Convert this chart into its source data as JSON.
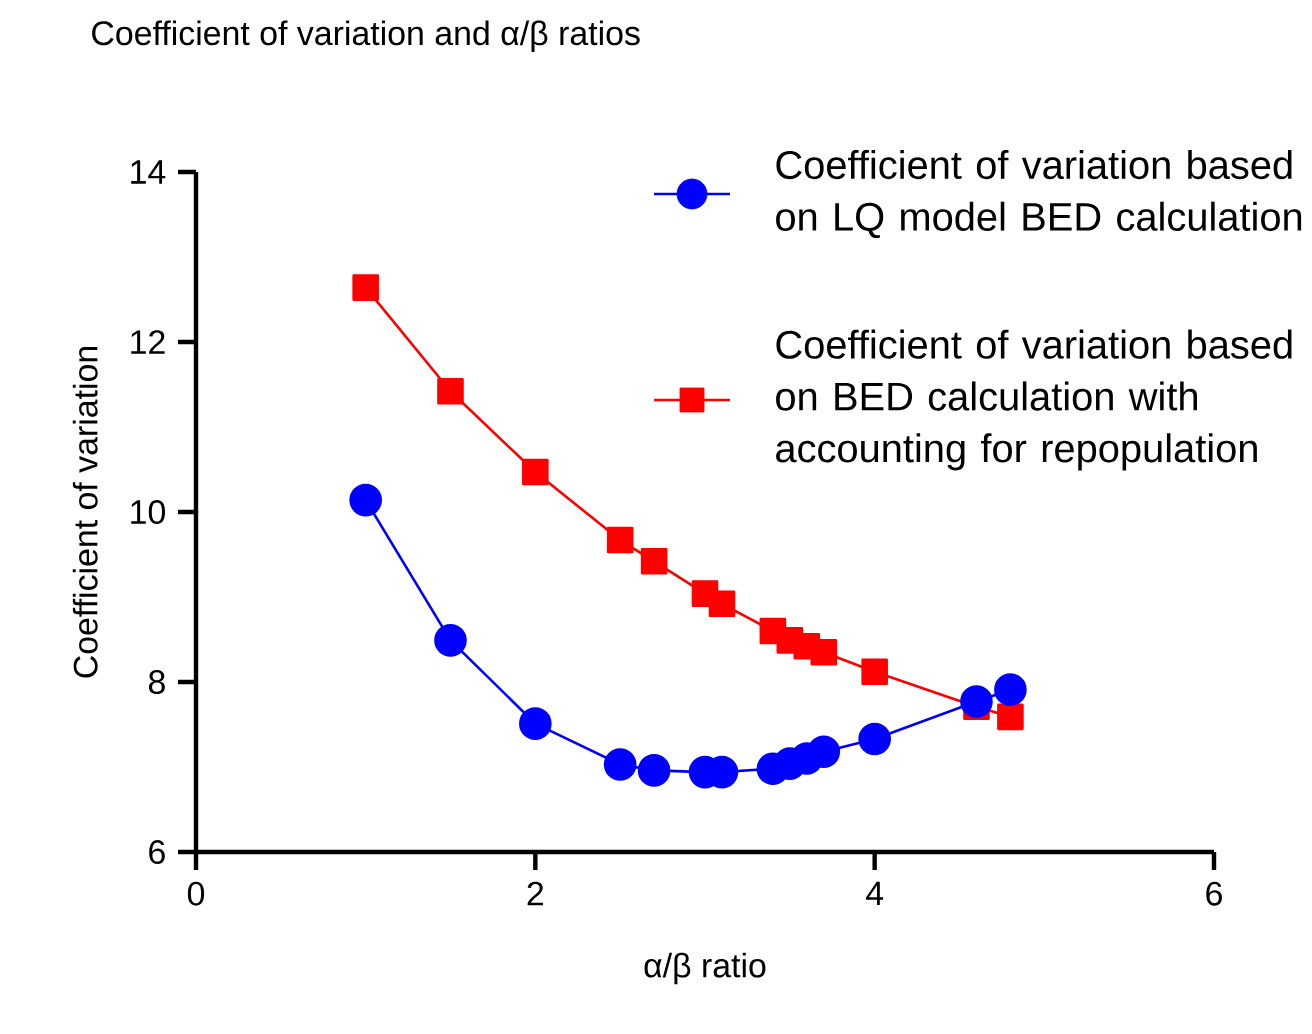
{
  "chart_data": {
    "type": "line",
    "title": "Coefficient of variation and α/β ratios",
    "xlabel": "α/β ratio",
    "ylabel": "Coefficient of variation",
    "x": [
      1,
      1.5,
      2,
      2.5,
      2.7,
      3.0,
      3.1,
      3.4,
      3.5,
      3.6,
      3.7,
      4.0,
      4.6,
      4.8
    ],
    "series": [
      {
        "name": "Coefficient of variation based on LQ model BED calculation",
        "color": "#0000ff",
        "marker": "circle",
        "values": [
          10.14,
          8.49,
          7.51,
          7.03,
          6.96,
          6.94,
          6.94,
          6.98,
          7.04,
          7.1,
          7.18,
          7.33,
          7.77,
          7.91
        ]
      },
      {
        "name": "Coefficient of variation based on BED calculation with accounting for repopulation",
        "color": "#ff0000",
        "marker": "square",
        "values": [
          12.64,
          11.42,
          10.47,
          9.67,
          9.42,
          9.04,
          8.92,
          8.6,
          8.49,
          8.42,
          8.35,
          8.12,
          7.71,
          7.59
        ]
      }
    ],
    "xlim": [
      0,
      6
    ],
    "ylim": [
      6,
      14
    ],
    "xticks": [
      0,
      2,
      4,
      6
    ],
    "yticks": [
      6,
      8,
      10,
      12,
      14
    ],
    "legend": "top right"
  }
}
